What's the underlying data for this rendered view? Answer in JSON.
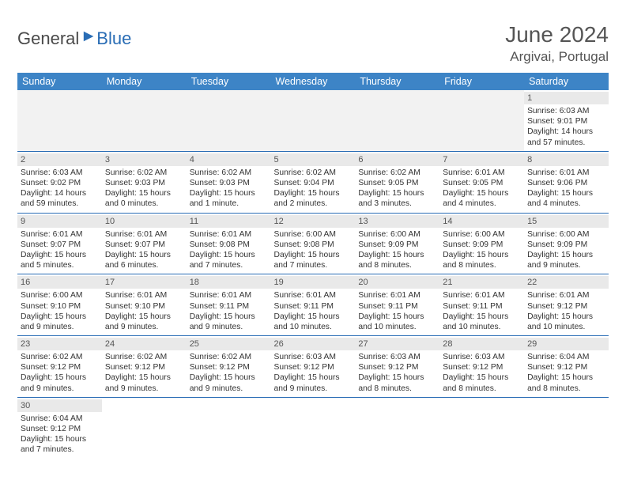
{
  "logo": {
    "general": "General",
    "blue": "Blue",
    "sail_color": "#2a6db5"
  },
  "title": "June 2024",
  "location": "Argivai, Portugal",
  "colors": {
    "header_bg": "#3d84c6",
    "header_text": "#ffffff",
    "daynum_bg": "#e9e9e9",
    "border": "#2a6db5",
    "text": "#333333",
    "title_text": "#555555"
  },
  "fonts": {
    "title_pt": 28,
    "location_pt": 17,
    "day_header_pt": 12.5,
    "cell_pt": 10.3
  },
  "day_headers": [
    "Sunday",
    "Monday",
    "Tuesday",
    "Wednesday",
    "Thursday",
    "Friday",
    "Saturday"
  ],
  "weeks": [
    [
      null,
      null,
      null,
      null,
      null,
      null,
      {
        "n": "1",
        "sr": "Sunrise: 6:03 AM",
        "ss": "Sunset: 9:01 PM",
        "dl": "Daylight: 14 hours and 57 minutes."
      }
    ],
    [
      {
        "n": "2",
        "sr": "Sunrise: 6:03 AM",
        "ss": "Sunset: 9:02 PM",
        "dl": "Daylight: 14 hours and 59 minutes."
      },
      {
        "n": "3",
        "sr": "Sunrise: 6:02 AM",
        "ss": "Sunset: 9:03 PM",
        "dl": "Daylight: 15 hours and 0 minutes."
      },
      {
        "n": "4",
        "sr": "Sunrise: 6:02 AM",
        "ss": "Sunset: 9:03 PM",
        "dl": "Daylight: 15 hours and 1 minute."
      },
      {
        "n": "5",
        "sr": "Sunrise: 6:02 AM",
        "ss": "Sunset: 9:04 PM",
        "dl": "Daylight: 15 hours and 2 minutes."
      },
      {
        "n": "6",
        "sr": "Sunrise: 6:02 AM",
        "ss": "Sunset: 9:05 PM",
        "dl": "Daylight: 15 hours and 3 minutes."
      },
      {
        "n": "7",
        "sr": "Sunrise: 6:01 AM",
        "ss": "Sunset: 9:05 PM",
        "dl": "Daylight: 15 hours and 4 minutes."
      },
      {
        "n": "8",
        "sr": "Sunrise: 6:01 AM",
        "ss": "Sunset: 9:06 PM",
        "dl": "Daylight: 15 hours and 4 minutes."
      }
    ],
    [
      {
        "n": "9",
        "sr": "Sunrise: 6:01 AM",
        "ss": "Sunset: 9:07 PM",
        "dl": "Daylight: 15 hours and 5 minutes."
      },
      {
        "n": "10",
        "sr": "Sunrise: 6:01 AM",
        "ss": "Sunset: 9:07 PM",
        "dl": "Daylight: 15 hours and 6 minutes."
      },
      {
        "n": "11",
        "sr": "Sunrise: 6:01 AM",
        "ss": "Sunset: 9:08 PM",
        "dl": "Daylight: 15 hours and 7 minutes."
      },
      {
        "n": "12",
        "sr": "Sunrise: 6:00 AM",
        "ss": "Sunset: 9:08 PM",
        "dl": "Daylight: 15 hours and 7 minutes."
      },
      {
        "n": "13",
        "sr": "Sunrise: 6:00 AM",
        "ss": "Sunset: 9:09 PM",
        "dl": "Daylight: 15 hours and 8 minutes."
      },
      {
        "n": "14",
        "sr": "Sunrise: 6:00 AM",
        "ss": "Sunset: 9:09 PM",
        "dl": "Daylight: 15 hours and 8 minutes."
      },
      {
        "n": "15",
        "sr": "Sunrise: 6:00 AM",
        "ss": "Sunset: 9:09 PM",
        "dl": "Daylight: 15 hours and 9 minutes."
      }
    ],
    [
      {
        "n": "16",
        "sr": "Sunrise: 6:00 AM",
        "ss": "Sunset: 9:10 PM",
        "dl": "Daylight: 15 hours and 9 minutes."
      },
      {
        "n": "17",
        "sr": "Sunrise: 6:01 AM",
        "ss": "Sunset: 9:10 PM",
        "dl": "Daylight: 15 hours and 9 minutes."
      },
      {
        "n": "18",
        "sr": "Sunrise: 6:01 AM",
        "ss": "Sunset: 9:11 PM",
        "dl": "Daylight: 15 hours and 9 minutes."
      },
      {
        "n": "19",
        "sr": "Sunrise: 6:01 AM",
        "ss": "Sunset: 9:11 PM",
        "dl": "Daylight: 15 hours and 10 minutes."
      },
      {
        "n": "20",
        "sr": "Sunrise: 6:01 AM",
        "ss": "Sunset: 9:11 PM",
        "dl": "Daylight: 15 hours and 10 minutes."
      },
      {
        "n": "21",
        "sr": "Sunrise: 6:01 AM",
        "ss": "Sunset: 9:11 PM",
        "dl": "Daylight: 15 hours and 10 minutes."
      },
      {
        "n": "22",
        "sr": "Sunrise: 6:01 AM",
        "ss": "Sunset: 9:12 PM",
        "dl": "Daylight: 15 hours and 10 minutes."
      }
    ],
    [
      {
        "n": "23",
        "sr": "Sunrise: 6:02 AM",
        "ss": "Sunset: 9:12 PM",
        "dl": "Daylight: 15 hours and 9 minutes."
      },
      {
        "n": "24",
        "sr": "Sunrise: 6:02 AM",
        "ss": "Sunset: 9:12 PM",
        "dl": "Daylight: 15 hours and 9 minutes."
      },
      {
        "n": "25",
        "sr": "Sunrise: 6:02 AM",
        "ss": "Sunset: 9:12 PM",
        "dl": "Daylight: 15 hours and 9 minutes."
      },
      {
        "n": "26",
        "sr": "Sunrise: 6:03 AM",
        "ss": "Sunset: 9:12 PM",
        "dl": "Daylight: 15 hours and 9 minutes."
      },
      {
        "n": "27",
        "sr": "Sunrise: 6:03 AM",
        "ss": "Sunset: 9:12 PM",
        "dl": "Daylight: 15 hours and 8 minutes."
      },
      {
        "n": "28",
        "sr": "Sunrise: 6:03 AM",
        "ss": "Sunset: 9:12 PM",
        "dl": "Daylight: 15 hours and 8 minutes."
      },
      {
        "n": "29",
        "sr": "Sunrise: 6:04 AM",
        "ss": "Sunset: 9:12 PM",
        "dl": "Daylight: 15 hours and 8 minutes."
      }
    ],
    [
      {
        "n": "30",
        "sr": "Sunrise: 6:04 AM",
        "ss": "Sunset: 9:12 PM",
        "dl": "Daylight: 15 hours and 7 minutes."
      },
      null,
      null,
      null,
      null,
      null,
      null
    ]
  ]
}
